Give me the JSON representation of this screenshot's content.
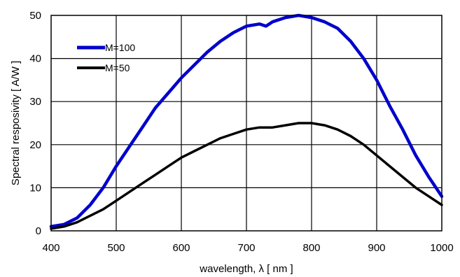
{
  "chart_data": {
    "type": "line",
    "title": "",
    "xlabel": "wavelength,  λ [ nm ]",
    "ylabel": "Spectral resposivity [ A/W ]",
    "xlim": [
      400,
      1000
    ],
    "ylim": [
      0,
      50
    ],
    "x_ticks": [
      400,
      500,
      600,
      700,
      800,
      900,
      1000
    ],
    "y_ticks": [
      0,
      10,
      20,
      30,
      40,
      50
    ],
    "x_tick_labels": [
      "400",
      "500",
      "600",
      "700",
      "800",
      "900",
      "1000"
    ],
    "y_tick_labels": [
      "0",
      "10",
      "20",
      "30",
      "40",
      "50"
    ],
    "grid": true,
    "legend_position": "top-left",
    "series": [
      {
        "name": "M=100",
        "color": "#0000cc",
        "x": [
          400,
          420,
          440,
          460,
          480,
          500,
          520,
          540,
          560,
          580,
          600,
          620,
          640,
          660,
          680,
          700,
          720,
          730,
          740,
          760,
          780,
          800,
          820,
          840,
          860,
          880,
          900,
          920,
          940,
          960,
          980,
          1000
        ],
        "y": [
          1,
          1.5,
          3,
          6,
          10,
          15,
          19.5,
          24,
          28.5,
          32,
          35.5,
          38.5,
          41.5,
          44,
          46,
          47.5,
          48,
          47.5,
          48.5,
          49.5,
          50,
          49.5,
          48.5,
          47,
          44,
          40,
          35,
          29,
          23.5,
          17.5,
          12.5,
          8
        ]
      },
      {
        "name": "M=50",
        "color": "#000000",
        "x": [
          400,
          420,
          440,
          460,
          480,
          500,
          520,
          540,
          560,
          580,
          600,
          620,
          640,
          660,
          680,
          700,
          720,
          740,
          760,
          780,
          800,
          820,
          840,
          860,
          880,
          900,
          920,
          940,
          960,
          980,
          1000
        ],
        "y": [
          0.5,
          1,
          2,
          3.5,
          5,
          7,
          9,
          11,
          13,
          15,
          17,
          18.5,
          20,
          21.5,
          22.5,
          23.5,
          24,
          24,
          24.5,
          25,
          25,
          24.5,
          23.5,
          22,
          20,
          17.5,
          15,
          12.5,
          10,
          8,
          6
        ]
      }
    ]
  }
}
